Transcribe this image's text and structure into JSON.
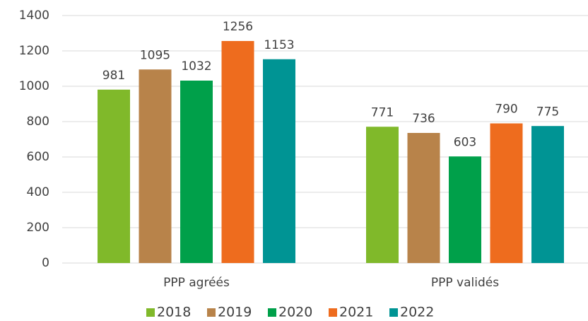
{
  "chart_data": {
    "type": "bar",
    "categories": [
      "PPP agréés",
      "PPP validés"
    ],
    "series": [
      {
        "name": "2018",
        "color": "#80b92a",
        "values": [
          981,
          771
        ]
      },
      {
        "name": "2019",
        "color": "#b8834a",
        "values": [
          1095,
          736
        ]
      },
      {
        "name": "2020",
        "color": "#00a04a",
        "values": [
          1032,
          603
        ]
      },
      {
        "name": "2021",
        "color": "#ee6c1e",
        "values": [
          1256,
          790
        ]
      },
      {
        "name": "2022",
        "color": "#009494",
        "values": [
          1153,
          775
        ]
      }
    ],
    "ylim": [
      0,
      1400
    ],
    "yticks": [
      0,
      200,
      400,
      600,
      800,
      1000,
      1200,
      1400
    ],
    "grid": true,
    "data_labels": true,
    "legend": "bottom"
  }
}
